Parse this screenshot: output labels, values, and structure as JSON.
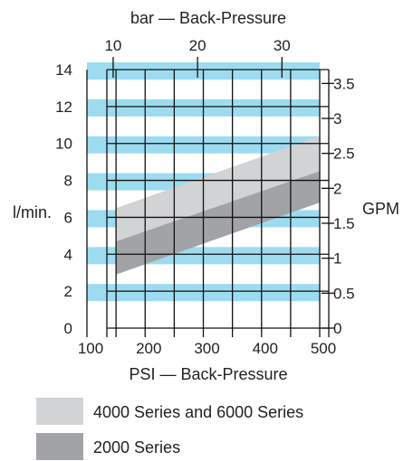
{
  "chart_data": {
    "type": "area",
    "x_axis": {
      "label": "PSI — Back-Pressure",
      "unit": "PSI",
      "range": [
        100,
        500
      ],
      "ticks": [
        100,
        200,
        300,
        400,
        500
      ]
    },
    "x2_axis": {
      "label": "bar — Back-Pressure",
      "unit": "bar",
      "ticks": [
        10,
        20,
        30
      ]
    },
    "y_axis": {
      "label": "l/min.",
      "unit": "l/min",
      "range": [
        0,
        14
      ],
      "ticks": [
        0,
        2,
        4,
        6,
        8,
        10,
        12,
        14
      ]
    },
    "y2_axis": {
      "label": "GPM",
      "unit": "GPM",
      "ticks": [
        "0",
        "0.5",
        "1",
        "1.5",
        "2",
        "2.5",
        "3",
        "3.5"
      ]
    },
    "grid": true,
    "series": [
      {
        "name": "4000 Series and 6000 Series",
        "color": "#d2d3d5",
        "x": [
          150,
          500
        ],
        "upper": [
          6.5,
          10.4
        ],
        "lower": [
          4.7,
          8.5
        ]
      },
      {
        "name": "2000 Series",
        "color": "#a2a3a6",
        "x": [
          150,
          500
        ],
        "upper": [
          4.7,
          8.5
        ],
        "lower": [
          2.9,
          6.8
        ]
      }
    ],
    "band_color": "#9ddcf0",
    "legend_position": "bottom-left"
  }
}
